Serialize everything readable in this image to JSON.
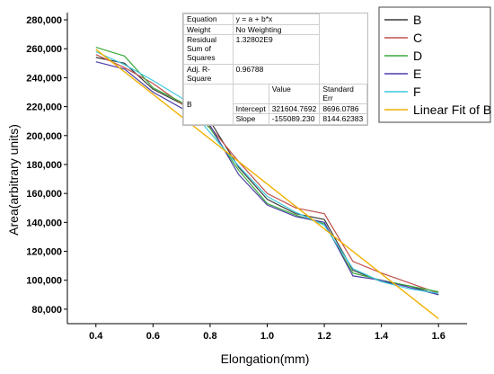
{
  "chart_data": {
    "type": "line",
    "xlabel": "Elongation(mm)",
    "ylabel": "Area(arbitrary units)",
    "xlim": [
      0.3,
      1.7
    ],
    "ylim": [
      70000,
      285000
    ],
    "xticks": [
      "0.4",
      "0.6",
      "0.8",
      "1.0",
      "1.2",
      "1.4",
      "1.6"
    ],
    "yticks": [
      "80,000",
      "100,000",
      "120,000",
      "140,000",
      "160,000",
      "180,000",
      "200,000",
      "220,000",
      "240,000",
      "260,000",
      "280,000"
    ],
    "x": [
      0.4,
      0.5,
      0.6,
      0.7,
      0.8,
      0.9,
      1.0,
      1.1,
      1.2,
      1.3,
      1.4,
      1.5,
      1.6
    ],
    "series": [
      {
        "name": "B",
        "color": "#3a3a3a",
        "values": [
          254000,
          250000,
          232000,
          222000,
          210000,
          178000,
          156000,
          146000,
          142000,
          107000,
          99000,
          96000,
          90000
        ]
      },
      {
        "name": "C",
        "color": "#c0504d",
        "values": [
          256000,
          247000,
          236000,
          222000,
          206000,
          182000,
          160000,
          150000,
          146000,
          113000,
          105000,
          98000,
          91000
        ]
      },
      {
        "name": "D",
        "color": "#3aaa3a",
        "values": [
          261000,
          255000,
          233000,
          223000,
          205000,
          176000,
          153000,
          145000,
          139000,
          105000,
          100000,
          96000,
          92000
        ]
      },
      {
        "name": "E",
        "color": "#4b3fa8",
        "values": [
          251000,
          246000,
          230000,
          219000,
          207000,
          173000,
          152000,
          144000,
          140000,
          103000,
          100000,
          95000,
          90000
        ]
      },
      {
        "name": "F",
        "color": "#3cc8e0",
        "values": [
          258000,
          249000,
          238000,
          226000,
          202000,
          179000,
          158000,
          147000,
          138000,
          108000,
          99000,
          94000,
          91000
        ]
      }
    ],
    "fit": {
      "name": "Linear Fit of B",
      "color": "#f0b000",
      "x": [
        0.4,
        1.6
      ],
      "values": [
        259568.9,
        73461.8
      ]
    },
    "grid": false,
    "legend": "right"
  },
  "stats_table": {
    "equation_label": "Equation",
    "equation_value": "y = a + b*x",
    "weight_label": "Weight",
    "weight_value": "No Weighting",
    "rss_label": "Residual Sum of Squares",
    "rss_value": "1.32802E9",
    "r2_label": "Adj. R-Square",
    "r2_value": "0.96788",
    "value_header": "Value",
    "stderr_header": "Standard Err",
    "series_label": "B",
    "intercept_label": "Intercept",
    "intercept_value": "321604.7692",
    "intercept_err": "8696.0786",
    "slope_label": "Slope",
    "slope_value": "-155089.230",
    "slope_err": "8144.62383"
  }
}
